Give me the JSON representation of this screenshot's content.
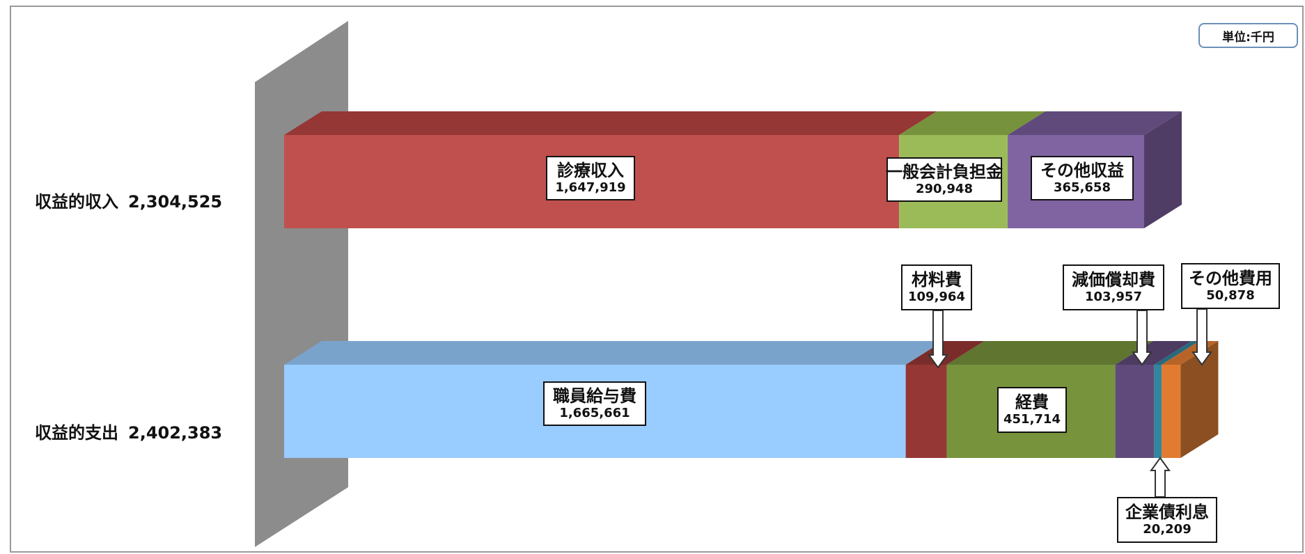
{
  "chart_data": {
    "type": "bar",
    "orientation": "horizontal",
    "stacked": true,
    "style": "3d",
    "unit_note": "単位:千円",
    "categories": [
      {
        "name": "収益的収入",
        "total": "2,304,525"
      },
      {
        "name": "収益的支出",
        "total": "2,402,383"
      }
    ],
    "series": [
      {
        "category": "収益的収入",
        "segments": [
          {
            "name": "診療収入",
            "value": 1647919,
            "label": "1,647,919",
            "color": "#c0504d",
            "top": "#953735",
            "side": "#7f2c2a"
          },
          {
            "name": "一般会計負担金",
            "value": 290948,
            "label": "290,948",
            "color": "#9bbb59",
            "top": "#76923c",
            "side": "#5f7530"
          },
          {
            "name": "その他収益",
            "value": 365658,
            "label": "365,658",
            "color": "#8064a2",
            "top": "#604a7b",
            "side": "#4f3d66"
          }
        ]
      },
      {
        "category": "収益的支出",
        "segments": [
          {
            "name": "職員給与費",
            "value": 1665661,
            "label": "1,665,661",
            "color": "#99ccff",
            "top": "#7aa3cc",
            "side": "#5f85ad"
          },
          {
            "name": "材料費",
            "value": 109964,
            "label": "109,964",
            "color": "#953735",
            "top": "#7a2c2b",
            "side": "#632322"
          },
          {
            "name": "経費",
            "value": 451714,
            "label": "451,714",
            "color": "#77933c",
            "top": "#5f7530",
            "side": "#4c5e26"
          },
          {
            "name": "減価償却費",
            "value": 103957,
            "label": "103,957",
            "color": "#604a7b",
            "top": "#4d3b62",
            "side": "#3e3050"
          },
          {
            "name": "企業債利息",
            "value": 20209,
            "label": "20,209",
            "color": "#31859c",
            "top": "#276a7d",
            "side": "#1f5563"
          },
          {
            "name": "その他費用",
            "value": 50878,
            "label": "50,878",
            "color": "#e07b30",
            "top": "#b86428",
            "side": "#8b4f22"
          }
        ]
      }
    ]
  }
}
